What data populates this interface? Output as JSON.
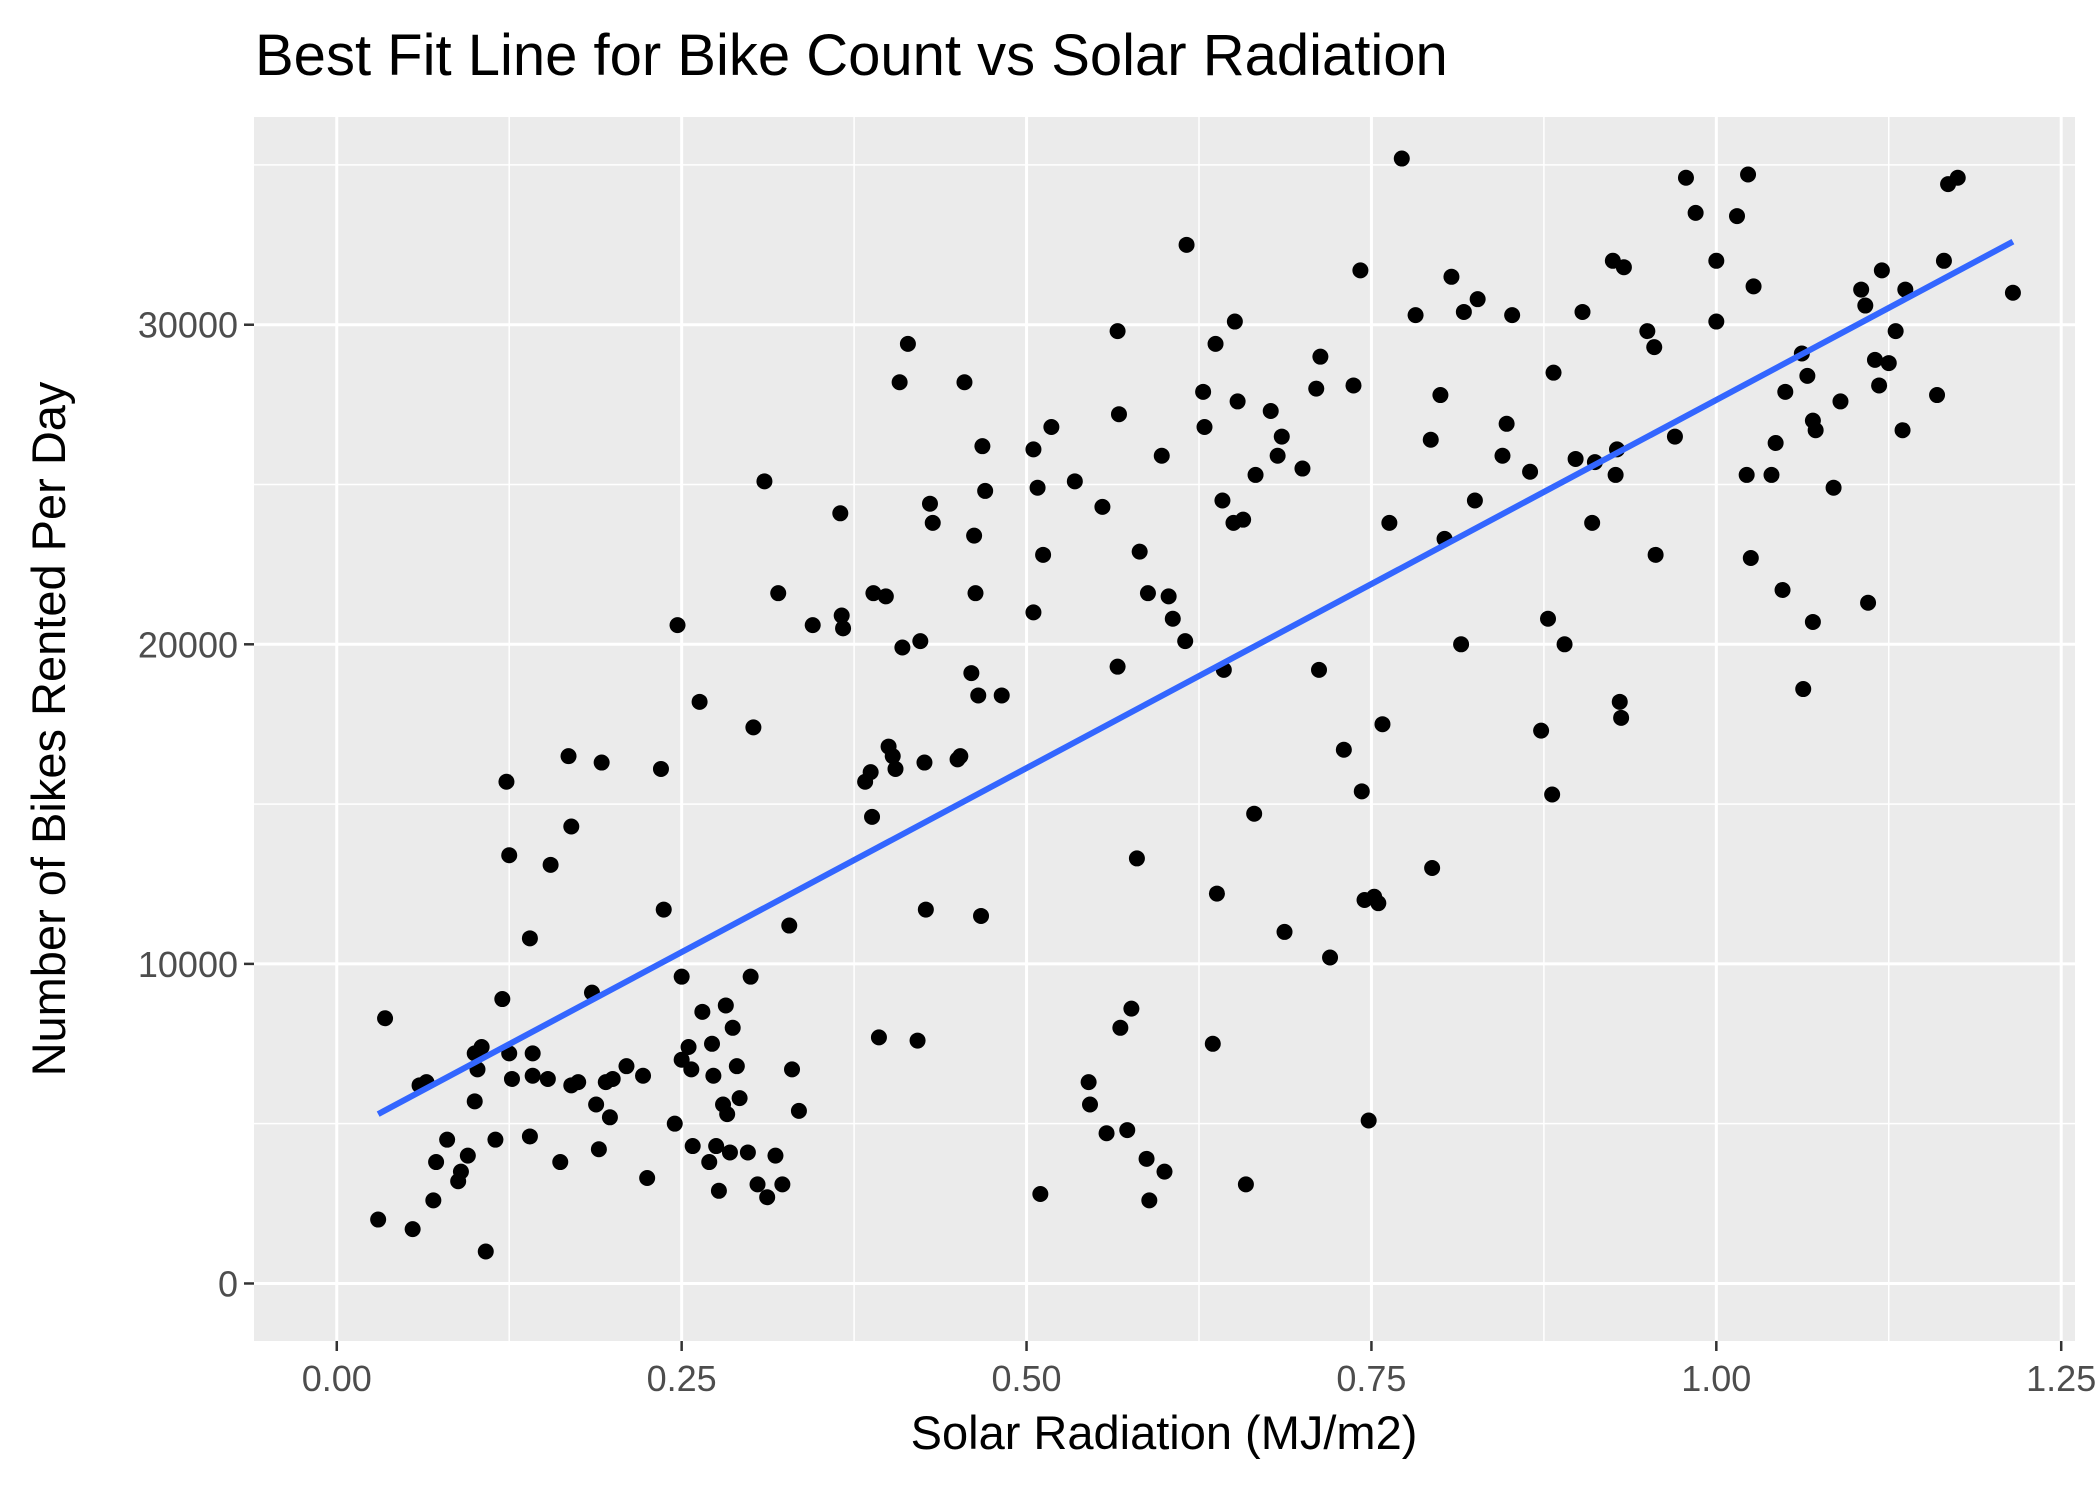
{
  "chart_data": {
    "type": "scatter",
    "title": "Best Fit Line for Bike Count vs Solar Radiation",
    "xlabel": "Solar Radiation (MJ/m2)",
    "ylabel": "Number of Bikes Rented Per Day",
    "xlim": [
      -0.06,
      1.26
    ],
    "ylim": [
      -1800,
      36500
    ],
    "x_ticks": [
      0.0,
      0.25,
      0.5,
      0.75,
      1.0,
      1.25
    ],
    "x_tick_labels": [
      "0.00",
      "0.25",
      "0.50",
      "0.75",
      "1.00",
      "1.25"
    ],
    "y_ticks": [
      0,
      10000,
      20000,
      30000
    ],
    "y_tick_labels": [
      "0",
      "10000",
      "20000",
      "30000"
    ],
    "grid": true,
    "panel_background": "#ebebeb",
    "grid_color": "#ffffff",
    "point_color": "#000000",
    "fit_line_color": "#3366ff",
    "fit_line": {
      "x": [
        0.03,
        1.215
      ],
      "y": [
        5300,
        32600
      ]
    },
    "points": [
      [
        0.03,
        2000
      ],
      [
        0.035,
        8300
      ],
      [
        0.055,
        1700
      ],
      [
        0.06,
        6200
      ],
      [
        0.065,
        6300
      ],
      [
        0.07,
        2600
      ],
      [
        0.072,
        3800
      ],
      [
        0.08,
        4500
      ],
      [
        0.088,
        3200
      ],
      [
        0.09,
        3500
      ],
      [
        0.095,
        4000
      ],
      [
        0.1,
        5700
      ],
      [
        0.1,
        7200
      ],
      [
        0.102,
        6700
      ],
      [
        0.105,
        7400
      ],
      [
        0.108,
        1000
      ],
      [
        0.115,
        4500
      ],
      [
        0.12,
        8900
      ],
      [
        0.123,
        15700
      ],
      [
        0.125,
        13400
      ],
      [
        0.125,
        7200
      ],
      [
        0.127,
        6400
      ],
      [
        0.14,
        10800
      ],
      [
        0.14,
        4600
      ],
      [
        0.142,
        7200
      ],
      [
        0.142,
        6500
      ],
      [
        0.153,
        6400
      ],
      [
        0.155,
        13100
      ],
      [
        0.162,
        3800
      ],
      [
        0.168,
        16500
      ],
      [
        0.17,
        14300
      ],
      [
        0.17,
        6200
      ],
      [
        0.175,
        6300
      ],
      [
        0.185,
        9100
      ],
      [
        0.188,
        5600
      ],
      [
        0.19,
        4200
      ],
      [
        0.192,
        16300
      ],
      [
        0.195,
        6300
      ],
      [
        0.198,
        5200
      ],
      [
        0.2,
        6400
      ],
      [
        0.21,
        6800
      ],
      [
        0.222,
        6500
      ],
      [
        0.225,
        3300
      ],
      [
        0.235,
        16100
      ],
      [
        0.237,
        11700
      ],
      [
        0.245,
        5000
      ],
      [
        0.247,
        20600
      ],
      [
        0.25,
        9600
      ],
      [
        0.25,
        7000
      ],
      [
        0.255,
        7400
      ],
      [
        0.257,
        6700
      ],
      [
        0.258,
        4300
      ],
      [
        0.263,
        18200
      ],
      [
        0.265,
        8500
      ],
      [
        0.27,
        3800
      ],
      [
        0.272,
        7500
      ],
      [
        0.273,
        6500
      ],
      [
        0.275,
        4300
      ],
      [
        0.277,
        2900
      ],
      [
        0.28,
        5600
      ],
      [
        0.282,
        8700
      ],
      [
        0.283,
        5300
      ],
      [
        0.285,
        4100
      ],
      [
        0.287,
        8000
      ],
      [
        0.29,
        6800
      ],
      [
        0.292,
        5800
      ],
      [
        0.298,
        4100
      ],
      [
        0.3,
        9600
      ],
      [
        0.302,
        17400
      ],
      [
        0.305,
        3100
      ],
      [
        0.31,
        25100
      ],
      [
        0.312,
        2700
      ],
      [
        0.318,
        4000
      ],
      [
        0.32,
        21600
      ],
      [
        0.323,
        3100
      ],
      [
        0.328,
        11200
      ],
      [
        0.33,
        6700
      ],
      [
        0.335,
        5400
      ],
      [
        0.345,
        20600
      ],
      [
        0.365,
        24100
      ],
      [
        0.366,
        20900
      ],
      [
        0.367,
        20500
      ],
      [
        0.383,
        15700
      ],
      [
        0.387,
        16000
      ],
      [
        0.388,
        14600
      ],
      [
        0.389,
        21600
      ],
      [
        0.393,
        7700
      ],
      [
        0.398,
        21500
      ],
      [
        0.4,
        16800
      ],
      [
        0.403,
        16500
      ],
      [
        0.405,
        16100
      ],
      [
        0.408,
        28200
      ],
      [
        0.41,
        19900
      ],
      [
        0.414,
        29400
      ],
      [
        0.421,
        7600
      ],
      [
        0.423,
        20100
      ],
      [
        0.426,
        16300
      ],
      [
        0.427,
        11700
      ],
      [
        0.43,
        24400
      ],
      [
        0.432,
        23800
      ],
      [
        0.45,
        16400
      ],
      [
        0.452,
        16500
      ],
      [
        0.455,
        28200
      ],
      [
        0.46,
        19100
      ],
      [
        0.462,
        23400
      ],
      [
        0.463,
        21600
      ],
      [
        0.465,
        18400
      ],
      [
        0.467,
        11500
      ],
      [
        0.468,
        26200
      ],
      [
        0.47,
        24800
      ],
      [
        0.482,
        18400
      ],
      [
        0.505,
        26100
      ],
      [
        0.505,
        21000
      ],
      [
        0.508,
        24900
      ],
      [
        0.51,
        2800
      ],
      [
        0.512,
        22800
      ],
      [
        0.518,
        26800
      ],
      [
        0.535,
        25100
      ],
      [
        0.545,
        6300
      ],
      [
        0.546,
        5600
      ],
      [
        0.555,
        24300
      ],
      [
        0.558,
        4700
      ],
      [
        0.566,
        19300
      ],
      [
        0.566,
        29800
      ],
      [
        0.567,
        27200
      ],
      [
        0.568,
        8000
      ],
      [
        0.573,
        4800
      ],
      [
        0.576,
        8600
      ],
      [
        0.58,
        13300
      ],
      [
        0.582,
        22900
      ],
      [
        0.587,
        3900
      ],
      [
        0.588,
        21600
      ],
      [
        0.589,
        2600
      ],
      [
        0.598,
        25900
      ],
      [
        0.6,
        3500
      ],
      [
        0.603,
        21500
      ],
      [
        0.606,
        20800
      ],
      [
        0.615,
        20100
      ],
      [
        0.616,
        32500
      ],
      [
        0.628,
        27900
      ],
      [
        0.629,
        26800
      ],
      [
        0.635,
        7500
      ],
      [
        0.637,
        29400
      ],
      [
        0.638,
        12200
      ],
      [
        0.642,
        24500
      ],
      [
        0.643,
        19200
      ],
      [
        0.65,
        23800
      ],
      [
        0.651,
        30100
      ],
      [
        0.653,
        27600
      ],
      [
        0.657,
        23900
      ],
      [
        0.659,
        3100
      ],
      [
        0.665,
        14700
      ],
      [
        0.666,
        25300
      ],
      [
        0.677,
        27300
      ],
      [
        0.682,
        25900
      ],
      [
        0.685,
        26500
      ],
      [
        0.687,
        11000
      ],
      [
        0.7,
        25500
      ],
      [
        0.71,
        28000
      ],
      [
        0.712,
        19200
      ],
      [
        0.713,
        29000
      ],
      [
        0.72,
        10200
      ],
      [
        0.73,
        16700
      ],
      [
        0.737,
        28100
      ],
      [
        0.742,
        31700
      ],
      [
        0.743,
        15400
      ],
      [
        0.745,
        12000
      ],
      [
        0.748,
        5100
      ],
      [
        0.752,
        12100
      ],
      [
        0.755,
        11900
      ],
      [
        0.758,
        17500
      ],
      [
        0.763,
        23800
      ],
      [
        0.772,
        35200
      ],
      [
        0.782,
        30300
      ],
      [
        0.793,
        26400
      ],
      [
        0.794,
        13000
      ],
      [
        0.8,
        27800
      ],
      [
        0.803,
        23300
      ],
      [
        0.808,
        31500
      ],
      [
        0.815,
        20000
      ],
      [
        0.817,
        30400
      ],
      [
        0.825,
        24500
      ],
      [
        0.827,
        30800
      ],
      [
        0.845,
        25900
      ],
      [
        0.848,
        26900
      ],
      [
        0.852,
        30300
      ],
      [
        0.865,
        25400
      ],
      [
        0.873,
        17300
      ],
      [
        0.878,
        20800
      ],
      [
        0.881,
        15300
      ],
      [
        0.882,
        28500
      ],
      [
        0.89,
        20000
      ],
      [
        0.898,
        25800
      ],
      [
        0.903,
        30400
      ],
      [
        0.91,
        23800
      ],
      [
        0.912,
        25700
      ],
      [
        0.925,
        32000
      ],
      [
        0.927,
        25300
      ],
      [
        0.928,
        26100
      ],
      [
        0.93,
        18200
      ],
      [
        0.931,
        17700
      ],
      [
        0.933,
        31800
      ],
      [
        0.95,
        29800
      ],
      [
        0.955,
        29300
      ],
      [
        0.956,
        22800
      ],
      [
        0.97,
        26500
      ],
      [
        0.978,
        34600
      ],
      [
        0.985,
        33500
      ],
      [
        1.0,
        32000
      ],
      [
        1.0,
        30100
      ],
      [
        1.015,
        33400
      ],
      [
        1.022,
        25300
      ],
      [
        1.023,
        34700
      ],
      [
        1.025,
        22700
      ],
      [
        1.027,
        31200
      ],
      [
        1.04,
        25300
      ],
      [
        1.043,
        26300
      ],
      [
        1.048,
        21700
      ],
      [
        1.05,
        27900
      ],
      [
        1.062,
        29100
      ],
      [
        1.063,
        18600
      ],
      [
        1.066,
        28400
      ],
      [
        1.07,
        20700
      ],
      [
        1.07,
        27000
      ],
      [
        1.072,
        26700
      ],
      [
        1.085,
        24900
      ],
      [
        1.09,
        27600
      ],
      [
        1.105,
        31100
      ],
      [
        1.108,
        30600
      ],
      [
        1.11,
        21300
      ],
      [
        1.115,
        28900
      ],
      [
        1.118,
        28100
      ],
      [
        1.12,
        31700
      ],
      [
        1.125,
        28800
      ],
      [
        1.13,
        29800
      ],
      [
        1.135,
        26700
      ],
      [
        1.137,
        31100
      ],
      [
        1.16,
        27800
      ],
      [
        1.165,
        32000
      ],
      [
        1.168,
        34400
      ],
      [
        1.175,
        34600
      ],
      [
        1.215,
        31000
      ]
    ]
  }
}
